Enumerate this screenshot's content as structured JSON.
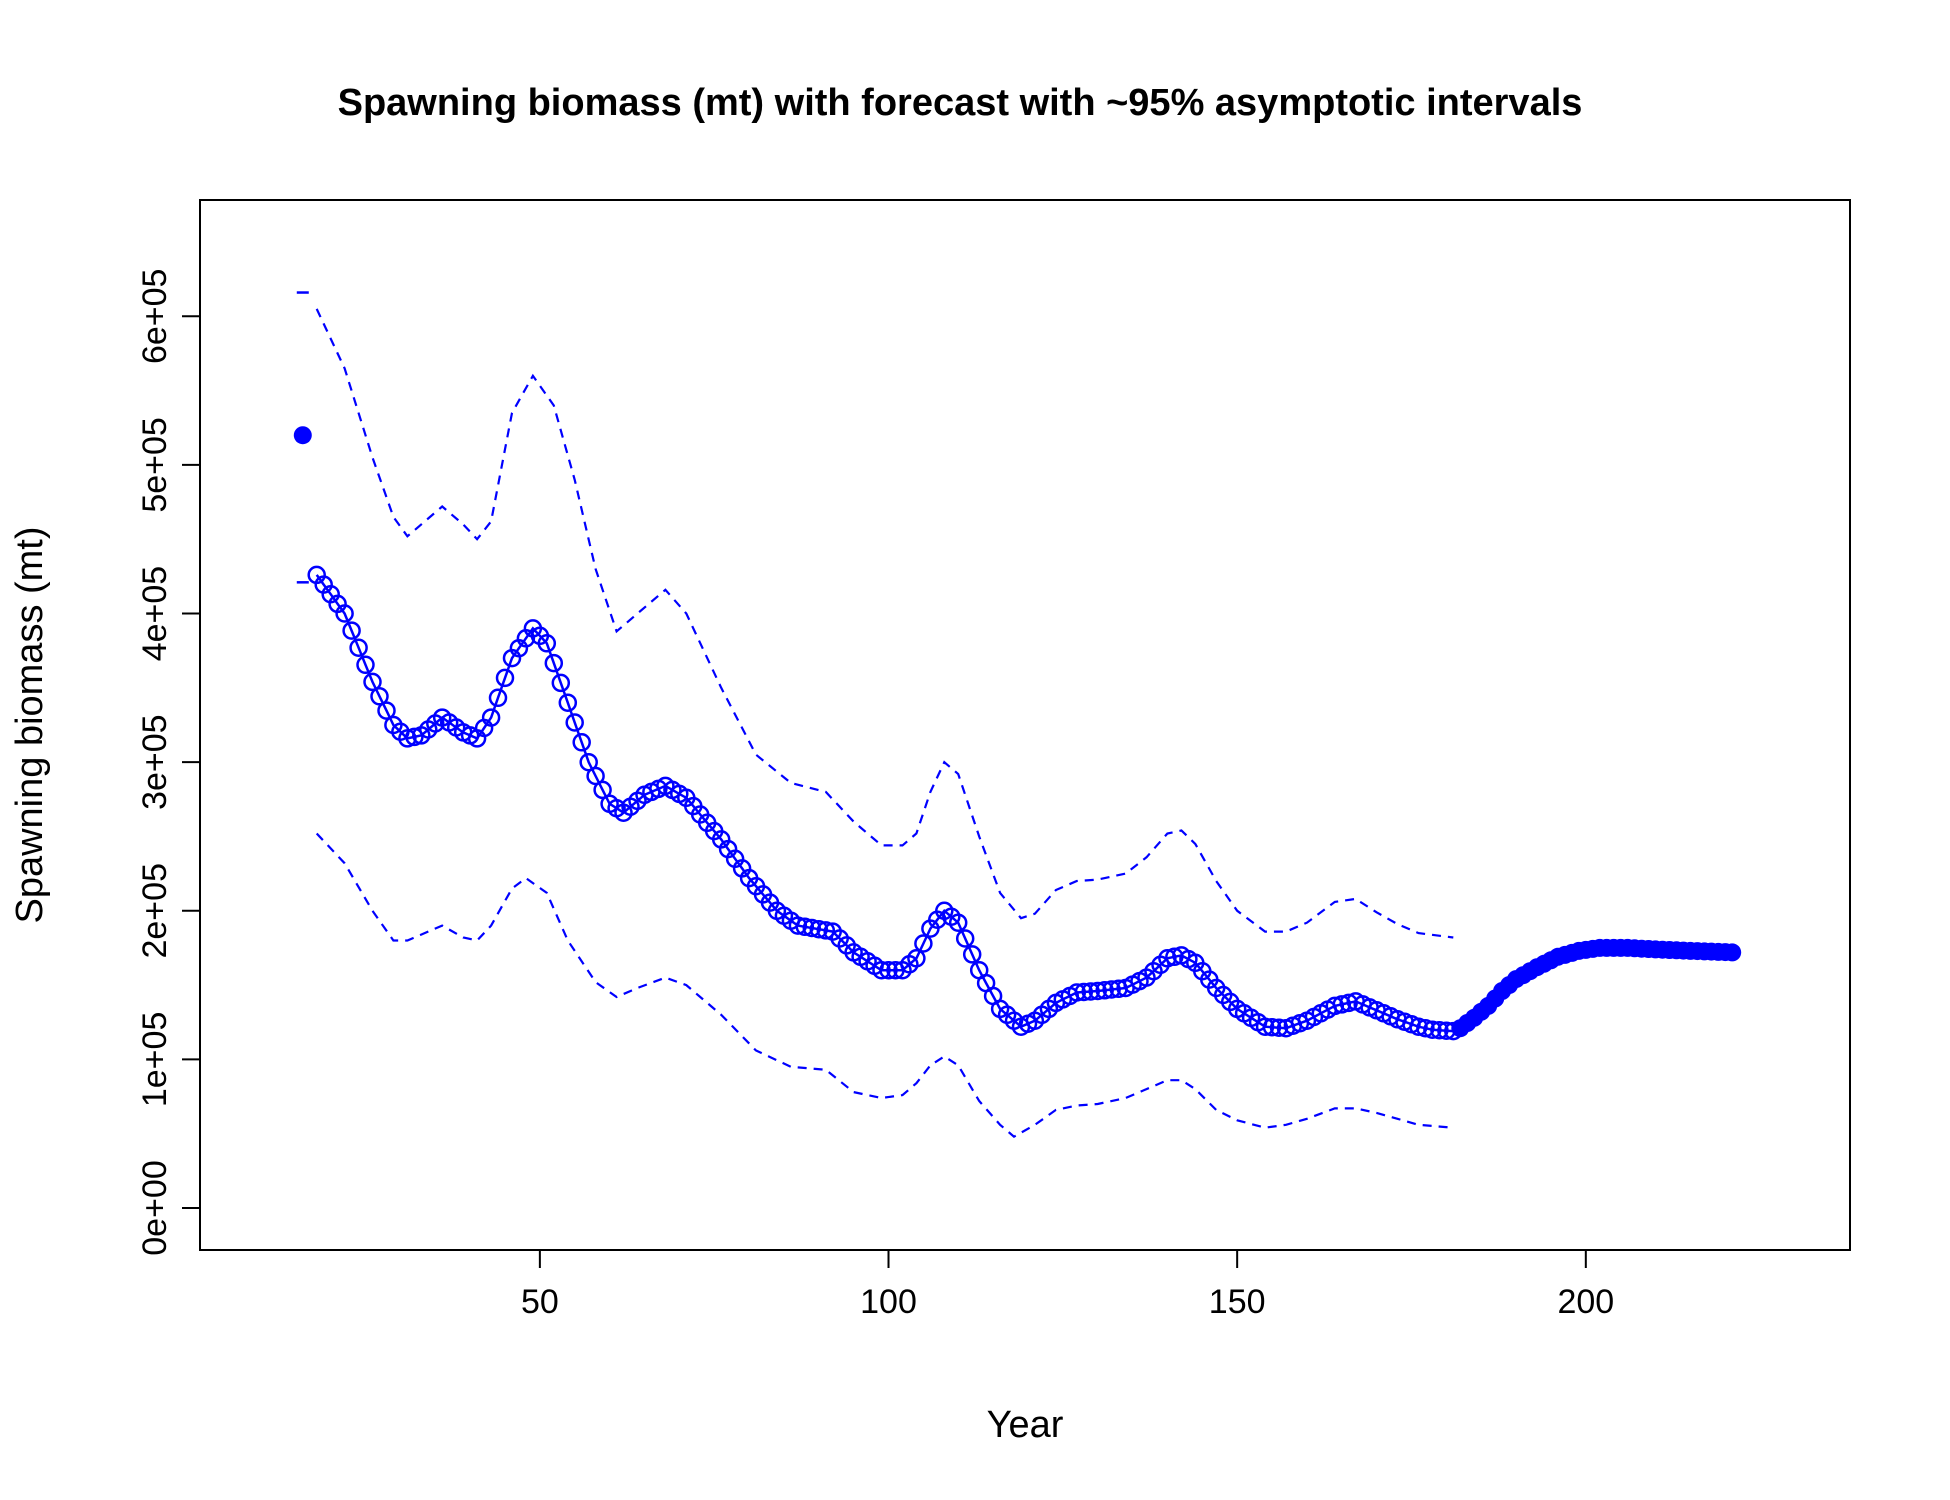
{
  "chart_data": {
    "type": "line",
    "title": "Spawning biomass (mt) with forecast with ~95% asymptotic intervals",
    "xlabel": "Year",
    "ylabel": "Spawning biomass (mt)",
    "xlim": [
      8,
      230
    ],
    "ylim": [
      0,
      650000
    ],
    "x_ticks": [
      50,
      100,
      150,
      200
    ],
    "x_tick_labels": [
      "50",
      "100",
      "150",
      "200"
    ],
    "y_ticks": [
      0,
      100000,
      200000,
      300000,
      400000,
      500000,
      600000
    ],
    "y_tick_labels": [
      "0e+00",
      "1e+05",
      "2e+05",
      "3e+05",
      "4e+05",
      "5e+05",
      "6e+05"
    ],
    "grid": false,
    "legend": "none",
    "color": "#0000ff",
    "virgin": {
      "x": 16,
      "y": 520000,
      "upper": 616000,
      "lower": 421000
    },
    "estimate": {
      "x_start": 18,
      "x_end": 181,
      "knots": [
        [
          18,
          426000
        ],
        [
          22,
          400000
        ],
        [
          26,
          354000
        ],
        [
          29,
          325000
        ],
        [
          31,
          316000
        ],
        [
          33,
          318000
        ],
        [
          36,
          330000
        ],
        [
          39,
          320000
        ],
        [
          41,
          316000
        ],
        [
          43,
          330000
        ],
        [
          46,
          370000
        ],
        [
          49,
          390000
        ],
        [
          51,
          380000
        ],
        [
          54,
          340000
        ],
        [
          57,
          300000
        ],
        [
          60,
          272000
        ],
        [
          62,
          266000
        ],
        [
          65,
          278000
        ],
        [
          68,
          284000
        ],
        [
          71,
          276000
        ],
        [
          76,
          248000
        ],
        [
          80,
          222000
        ],
        [
          84,
          200000
        ],
        [
          87,
          190000
        ],
        [
          92,
          186000
        ],
        [
          95,
          172000
        ],
        [
          99,
          160000
        ],
        [
          102,
          160000
        ],
        [
          104,
          168000
        ],
        [
          106,
          188000
        ],
        [
          108,
          200000
        ],
        [
          110,
          192000
        ],
        [
          113,
          160000
        ],
        [
          116,
          134000
        ],
        [
          119,
          122000
        ],
        [
          121,
          126000
        ],
        [
          124,
          138000
        ],
        [
          127,
          145000
        ],
        [
          130,
          146000
        ],
        [
          134,
          148000
        ],
        [
          137,
          155000
        ],
        [
          140,
          168000
        ],
        [
          142,
          170000
        ],
        [
          144,
          165000
        ],
        [
          147,
          148000
        ],
        [
          150,
          134000
        ],
        [
          154,
          122000
        ],
        [
          157,
          121000
        ],
        [
          160,
          126000
        ],
        [
          164,
          136000
        ],
        [
          167,
          139000
        ],
        [
          170,
          133000
        ],
        [
          173,
          127000
        ],
        [
          176,
          122000
        ],
        [
          178,
          120000
        ],
        [
          181,
          119000
        ]
      ]
    },
    "forecast": {
      "x_start": 182,
      "x_end": 221,
      "knots": [
        [
          182,
          121000
        ],
        [
          184,
          128000
        ],
        [
          186,
          136000
        ],
        [
          188,
          146000
        ],
        [
          190,
          154000
        ],
        [
          193,
          162000
        ],
        [
          196,
          169000
        ],
        [
          199,
          173000
        ],
        [
          202,
          175000
        ],
        [
          206,
          175000
        ],
        [
          210,
          174000
        ],
        [
          215,
          173000
        ],
        [
          221,
          172000
        ]
      ]
    },
    "upper_ci": [
      [
        18,
        605000
      ],
      [
        22,
        565000
      ],
      [
        26,
        505000
      ],
      [
        29,
        465000
      ],
      [
        31,
        452000
      ],
      [
        36,
        472000
      ],
      [
        39,
        460000
      ],
      [
        41,
        450000
      ],
      [
        43,
        462000
      ],
      [
        46,
        535000
      ],
      [
        49,
        560000
      ],
      [
        52,
        540000
      ],
      [
        55,
        490000
      ],
      [
        58,
        430000
      ],
      [
        61,
        388000
      ],
      [
        64,
        400000
      ],
      [
        68,
        416000
      ],
      [
        71,
        400000
      ],
      [
        76,
        350000
      ],
      [
        81,
        305000
      ],
      [
        86,
        286000
      ],
      [
        91,
        280000
      ],
      [
        95,
        260000
      ],
      [
        99,
        244000
      ],
      [
        102,
        244000
      ],
      [
        104,
        252000
      ],
      [
        106,
        280000
      ],
      [
        108,
        300000
      ],
      [
        110,
        292000
      ],
      [
        113,
        250000
      ],
      [
        116,
        212000
      ],
      [
        119,
        195000
      ],
      [
        121,
        198000
      ],
      [
        124,
        214000
      ],
      [
        127,
        220000
      ],
      [
        130,
        221000
      ],
      [
        134,
        225000
      ],
      [
        137,
        236000
      ],
      [
        140,
        252000
      ],
      [
        142,
        254000
      ],
      [
        144,
        245000
      ],
      [
        147,
        220000
      ],
      [
        150,
        200000
      ],
      [
        154,
        186000
      ],
      [
        157,
        186000
      ],
      [
        160,
        192000
      ],
      [
        164,
        206000
      ],
      [
        167,
        208000
      ],
      [
        170,
        199000
      ],
      [
        173,
        191000
      ],
      [
        176,
        185000
      ],
      [
        181,
        182000
      ]
    ],
    "lower_ci": [
      [
        18,
        252000
      ],
      [
        22,
        232000
      ],
      [
        26,
        200000
      ],
      [
        29,
        180000
      ],
      [
        31,
        180000
      ],
      [
        36,
        190000
      ],
      [
        39,
        182000
      ],
      [
        41,
        180000
      ],
      [
        43,
        190000
      ],
      [
        46,
        215000
      ],
      [
        48,
        222000
      ],
      [
        51,
        212000
      ],
      [
        54,
        180000
      ],
      [
        58,
        152000
      ],
      [
        61,
        142000
      ],
      [
        64,
        148000
      ],
      [
        68,
        155000
      ],
      [
        71,
        150000
      ],
      [
        76,
        130000
      ],
      [
        81,
        106000
      ],
      [
        86,
        95000
      ],
      [
        91,
        93000
      ],
      [
        95,
        78000
      ],
      [
        99,
        74000
      ],
      [
        102,
        76000
      ],
      [
        104,
        84000
      ],
      [
        106,
        96000
      ],
      [
        108,
        102000
      ],
      [
        110,
        96000
      ],
      [
        113,
        72000
      ],
      [
        116,
        56000
      ],
      [
        118,
        48000
      ],
      [
        121,
        56000
      ],
      [
        124,
        66000
      ],
      [
        127,
        69000
      ],
      [
        130,
        70000
      ],
      [
        134,
        74000
      ],
      [
        137,
        80000
      ],
      [
        140,
        86000
      ],
      [
        142,
        86000
      ],
      [
        144,
        80000
      ],
      [
        147,
        66000
      ],
      [
        150,
        59000
      ],
      [
        154,
        54000
      ],
      [
        157,
        56000
      ],
      [
        160,
        60000
      ],
      [
        164,
        67000
      ],
      [
        167,
        67000
      ],
      [
        170,
        64000
      ],
      [
        173,
        60000
      ],
      [
        176,
        56000
      ],
      [
        181,
        54000
      ]
    ]
  }
}
